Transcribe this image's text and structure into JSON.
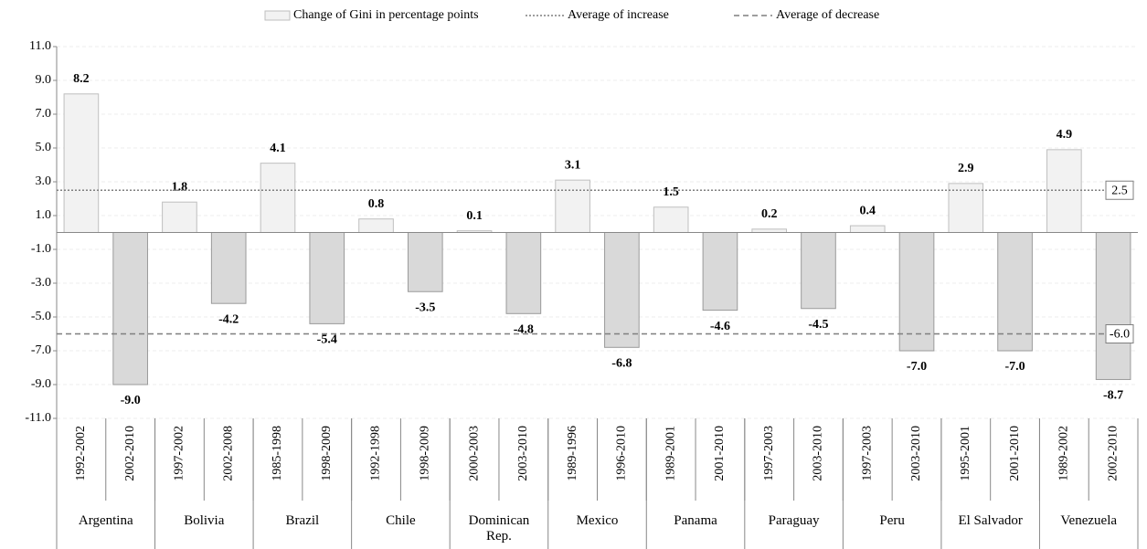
{
  "chart_data": {
    "type": "bar",
    "categories": [
      "1992-2002",
      "2002-2010",
      "1997-2002",
      "2002-2008",
      "1985-1998",
      "1998-2009",
      "1992-1998",
      "1998-2009",
      "2000-2003",
      "2003-2010",
      "1989-1996",
      "1996-2010",
      "1989-2001",
      "2001-2010",
      "1997-2003",
      "2003-2010",
      "1997-2003",
      "2003-2010",
      "1995-2001",
      "2001-2010",
      "1989-2002",
      "2002-2010"
    ],
    "groups": [
      {
        "label": "Argentina",
        "span": 2
      },
      {
        "label": "Bolivia",
        "span": 2
      },
      {
        "label": "Brazil",
        "span": 2
      },
      {
        "label": "Chile",
        "span": 2
      },
      {
        "label": "Dominican Rep.",
        "span": 2
      },
      {
        "label": "Mexico",
        "span": 2
      },
      {
        "label": "Panama",
        "span": 2
      },
      {
        "label": "Paraguay",
        "span": 2
      },
      {
        "label": "Peru",
        "span": 2
      },
      {
        "label": "El Salvador",
        "span": 2
      },
      {
        "label": "Venezuela",
        "span": 2
      }
    ],
    "series": [
      {
        "name": "Change of Gini in percentage points",
        "color_positive": "#f2f2f2",
        "color_negative": "#d9d9d9",
        "values": [
          8.2,
          -9.0,
          1.8,
          -4.2,
          4.1,
          -5.4,
          0.8,
          -3.5,
          0.1,
          -4.8,
          3.1,
          -6.8,
          1.5,
          -4.6,
          0.2,
          -4.5,
          0.4,
          -7.0,
          2.9,
          -7.0,
          4.9,
          -8.7
        ],
        "value_labels": [
          "8.2",
          "-9.0",
          "1.8",
          "-4.2",
          "4.1",
          "-5.4",
          "0.8",
          "-3.5",
          "0.1",
          "-4.8",
          "3.1",
          "-6.8",
          "1.5",
          "-4.6",
          "0.2",
          "-4.5",
          "0.4",
          "-7.0",
          "2.9",
          "-7.0",
          "4.9",
          "-8.7"
        ]
      }
    ],
    "reference_lines": [
      {
        "name": "Average of increase",
        "value": 2.5,
        "style": "dotted",
        "color": "#7f7f7f"
      },
      {
        "name": "Average of decrease",
        "value": -6.0,
        "value_label": "-6.0",
        "style": "dashed",
        "color": "#7f7f7f"
      }
    ],
    "ylim": [
      -11,
      11
    ],
    "yticks": [
      {
        "value": 11,
        "label": "11.0"
      },
      {
        "value": 9,
        "label": "9.0"
      },
      {
        "value": 7,
        "label": "7.0"
      },
      {
        "value": 5,
        "label": "5.0"
      },
      {
        "value": 3,
        "label": "3.0"
      },
      {
        "value": 1,
        "label": "1.0"
      },
      {
        "value": -1,
        "label": "-1.0"
      },
      {
        "value": -3,
        "label": "-3.0"
      },
      {
        "value": -5,
        "label": "-5.0"
      },
      {
        "value": -7,
        "label": "-7.0"
      },
      {
        "value": -9,
        "label": "-9.0"
      },
      {
        "value": -11,
        "label": "-11.0"
      }
    ],
    "grid": true
  }
}
